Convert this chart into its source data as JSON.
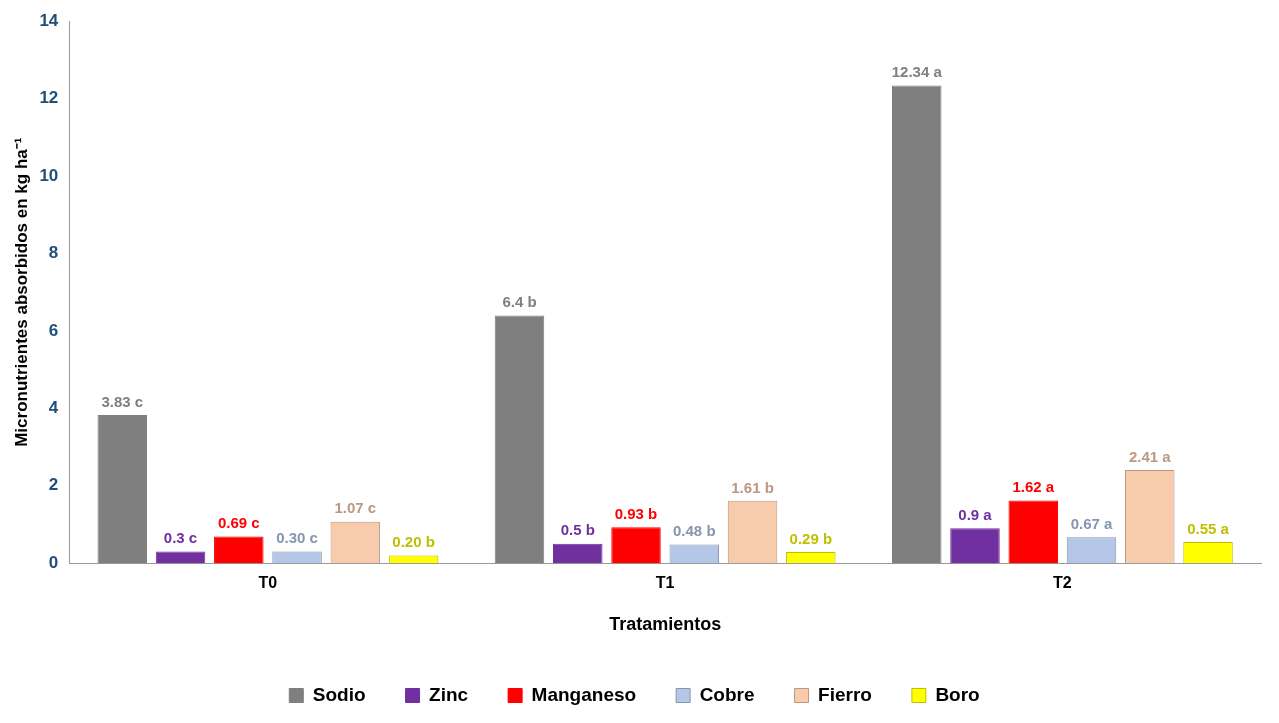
{
  "chart_data": {
    "type": "bar",
    "xlabel": "Tratamientos",
    "ylabel": "Micronutrientes absorbidos en kg ha⁻¹",
    "categories": [
      "T0",
      "T1",
      "T2"
    ],
    "ylim": [
      0,
      14
    ],
    "yticks": [
      0,
      2,
      4,
      6,
      8,
      10,
      12,
      14
    ],
    "grid": false,
    "legend": "bottom",
    "series": [
      {
        "name": "Sodio",
        "color": "#7f7f7f",
        "values": [
          3.83,
          6.4,
          12.34
        ],
        "value_labels": [
          "3.83 c",
          "6.4 b",
          "12.34 a"
        ]
      },
      {
        "name": "Zinc",
        "color": "#7030a0",
        "values": [
          0.3,
          0.5,
          0.9
        ],
        "value_labels": [
          "0.3 c",
          "0.5 b",
          "0.9 a"
        ]
      },
      {
        "name": "Manganeso",
        "color": "#ff0000",
        "values": [
          0.69,
          0.93,
          1.62
        ],
        "value_labels": [
          "0.69 c",
          "0.93 b",
          "1.62 a"
        ]
      },
      {
        "name": "Cobre",
        "color": "#b4c7e7",
        "values": [
          0.3,
          0.48,
          0.67
        ],
        "value_labels": [
          "0.30 c",
          "0.48 b",
          "0.67 a"
        ]
      },
      {
        "name": "Fierro",
        "color": "#f8cbad",
        "values": [
          1.07,
          1.61,
          2.41
        ],
        "value_labels": [
          "1.07 c",
          "1.61 b",
          "2.41 a"
        ]
      },
      {
        "name": "Boro",
        "color": "#ffff00",
        "values": [
          0.2,
          0.29,
          0.55
        ],
        "value_labels": [
          "0.20 b",
          "0.29 b",
          "0.55 a"
        ]
      }
    ]
  }
}
